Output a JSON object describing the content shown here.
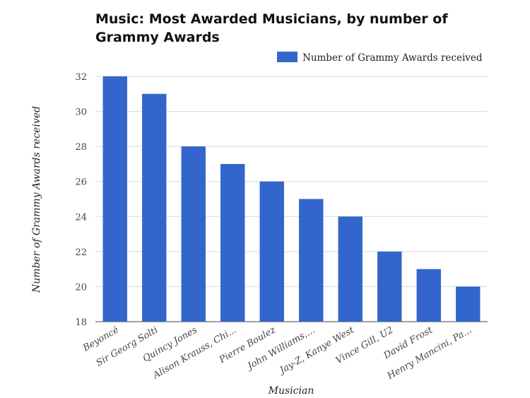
{
  "chart_data": {
    "type": "bar",
    "title": "Music: Most Awarded Musicians, by number of Grammy Awards",
    "xlabel": "Musician",
    "ylabel": "Number of Grammy Awards received",
    "categories": [
      "Beyoncé",
      "Sir Georg Solti",
      "Quincy Jones",
      "Alison Krauss, Chi...",
      "Pierre Boulez",
      "John Williams,...",
      "Jay-Z, Kanye West",
      "Vince Gill, U2",
      "David Frost",
      "Henry Mancini, Pa..."
    ],
    "series": [
      {
        "name": "Number of Grammy Awards received",
        "values": [
          32,
          31,
          28,
          27,
          26,
          25,
          24,
          22,
          21,
          20
        ]
      }
    ],
    "ylim": [
      18,
      32
    ],
    "yticks": [
      18,
      20,
      22,
      24,
      26,
      28,
      30,
      32
    ],
    "grid": true,
    "legend_position": "top-right",
    "colors": {
      "bar": "#3366cc"
    }
  }
}
